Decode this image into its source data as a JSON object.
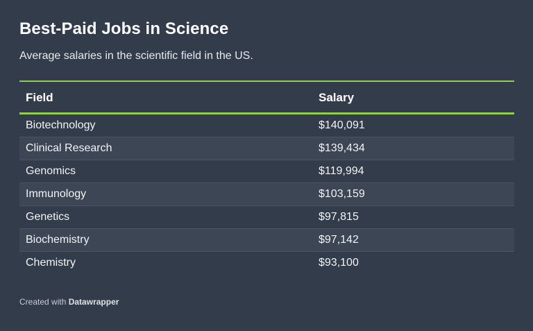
{
  "chart_data": {
    "type": "table",
    "title": "Best-Paid Jobs in Science",
    "subtitle": "Average salaries in the scientific field in the US.",
    "columns": [
      "Field",
      "Salary"
    ],
    "rows": [
      {
        "field": "Biotechnology",
        "salary": "$140,091"
      },
      {
        "field": "Clinical Research",
        "salary": "$139,434"
      },
      {
        "field": "Genomics",
        "salary": "$119,994"
      },
      {
        "field": "Immunology",
        "salary": "$103,159"
      },
      {
        "field": "Genetics",
        "salary": "$97,815"
      },
      {
        "field": "Biochemistry",
        "salary": "$97,142"
      },
      {
        "field": "Chemistry",
        "salary": "$93,100"
      }
    ]
  },
  "footer": {
    "prefix": "Created with",
    "brand": "Datawrapper"
  },
  "colors": {
    "background": "#333c4a",
    "accent": "#8fd14f",
    "row_alt": "#3d4654"
  }
}
